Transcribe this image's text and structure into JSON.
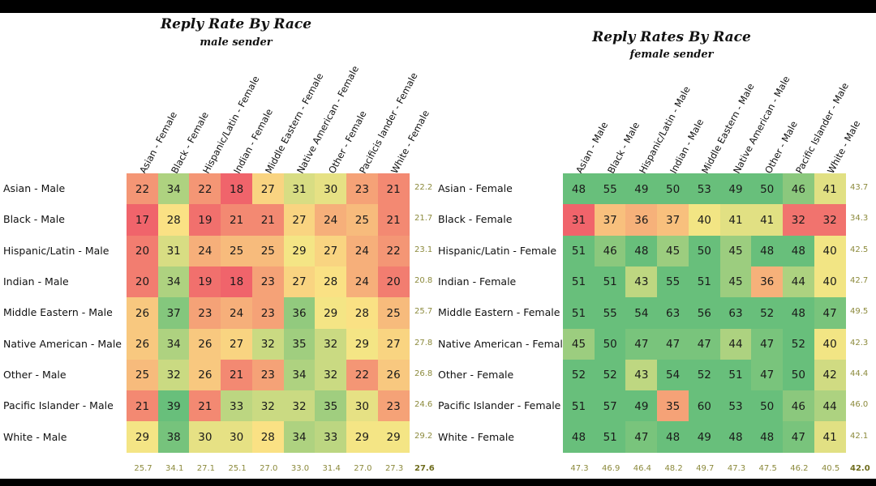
{
  "chart_data": [
    {
      "type": "heatmap",
      "title": "Reply Rate By Race",
      "subtitle": "male sender",
      "rows": [
        "Asian - Male",
        "Black - Male",
        "Hispanic/Latin - Male",
        "Indian - Male",
        "Middle Eastern - Male",
        "Native American - Male",
        "Other - Male",
        "Pacific Islander - Male",
        "White - Male"
      ],
      "columns": [
        "Asian - Female",
        "Black - Female",
        "Hispanic/Latin - Female",
        "Indian - Female",
        "Middle Eastern - Female",
        "Native American - Female",
        "Other - Female",
        "Pacificis lander - Female",
        "White - Female"
      ],
      "values": [
        [
          22,
          34,
          22,
          18,
          27,
          31,
          30,
          23,
          21
        ],
        [
          17,
          28,
          19,
          21,
          21,
          27,
          24,
          25,
          21
        ],
        [
          20,
          31,
          24,
          25,
          25,
          29,
          27,
          24,
          22
        ],
        [
          20,
          34,
          19,
          18,
          23,
          27,
          28,
          24,
          20
        ],
        [
          26,
          37,
          23,
          24,
          23,
          36,
          29,
          28,
          25
        ],
        [
          26,
          34,
          26,
          27,
          32,
          35,
          32,
          29,
          27
        ],
        [
          25,
          32,
          26,
          21,
          23,
          34,
          32,
          22,
          26
        ],
        [
          21,
          39,
          21,
          33,
          32,
          32,
          35,
          30,
          23
        ],
        [
          29,
          38,
          30,
          30,
          28,
          34,
          33,
          29,
          29
        ]
      ],
      "row_averages": [
        "22.2",
        "21.7",
        "23.1",
        "20.8",
        "25.7",
        "27.8",
        "26.8",
        "24.6",
        "29.2"
      ],
      "column_averages": [
        "25.7",
        "34.1",
        "27.1",
        "25.1",
        "27.0",
        "33.0",
        "31.4",
        "27.0",
        "27.3"
      ],
      "overall_average": "27.6",
      "color_range": [
        18,
        39
      ]
    },
    {
      "type": "heatmap",
      "title": "Reply Rates By Race",
      "subtitle": "female sender",
      "rows": [
        "Asian - Female",
        "Black - Female",
        "Hispanic/Latin - Female",
        "Indian - Female",
        "Middle Eastern - Female",
        "Native American - Female",
        "Other - Female",
        "Pacific Islander - Female",
        "White - Female"
      ],
      "columns": [
        "Asian - Male",
        "Black - Male",
        "Hispanic/Latin - Male",
        "Indian - Male",
        "Middle Eastern - Male",
        "Native American - Male",
        "Other - Male",
        "Pacific Islander - Male",
        "White - Male"
      ],
      "values": [
        [
          48,
          55,
          49,
          50,
          53,
          49,
          50,
          46,
          41
        ],
        [
          31,
          37,
          36,
          37,
          40,
          41,
          41,
          32,
          32
        ],
        [
          51,
          46,
          48,
          45,
          50,
          45,
          48,
          48,
          40
        ],
        [
          51,
          51,
          43,
          55,
          51,
          45,
          36,
          44,
          40
        ],
        [
          51,
          55,
          54,
          63,
          56,
          63,
          52,
          48,
          47
        ],
        [
          45,
          50,
          47,
          47,
          47,
          44,
          47,
          52,
          40
        ],
        [
          52,
          52,
          43,
          54,
          52,
          51,
          47,
          50,
          42
        ],
        [
          51,
          57,
          49,
          35,
          60,
          53,
          50,
          46,
          44
        ],
        [
          48,
          51,
          47,
          48,
          49,
          48,
          48,
          47,
          41
        ]
      ],
      "row_averages": [
        "43.7",
        "34.3",
        "42.5",
        "42.7",
        "49.5",
        "42.3",
        "44.4",
        "46.0",
        "42.1"
      ],
      "column_averages": [
        "47.3",
        "46.9",
        "46.4",
        "48.2",
        "49.7",
        "47.3",
        "47.5",
        "46.2",
        "40.5"
      ],
      "overall_average": "42.0",
      "color_range": [
        31,
        48
      ]
    }
  ],
  "colors": {
    "low": "#f0646b",
    "mid": "#fbe785",
    "high": "#68bf7b"
  }
}
